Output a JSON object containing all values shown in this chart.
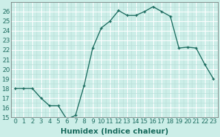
{
  "x": [
    0,
    1,
    2,
    3,
    4,
    5,
    6,
    7,
    8,
    9,
    10,
    11,
    12,
    13,
    14,
    15,
    16,
    17,
    18,
    19,
    20,
    21,
    22,
    23
  ],
  "y": [
    18,
    18,
    18,
    17,
    16.2,
    16.2,
    14.8,
    15.2,
    18.3,
    22.2,
    24.3,
    25.0,
    26.1,
    25.6,
    25.6,
    26.0,
    26.5,
    26.0,
    25.5,
    22.2,
    22.3,
    22.2,
    20.5,
    19.0
  ],
  "line_color": "#1a6b5e",
  "marker": "+",
  "marker_size": 3.5,
  "marker_color": "#1a6b5e",
  "bg_color": "#cceee8",
  "grid_minor_color": "#b8ddd8",
  "grid_major_color": "#ffffff",
  "xlabel": "Humidex (Indice chaleur)",
  "xlabel_fontsize": 8,
  "ylim": [
    15,
    27
  ],
  "yticks": [
    15,
    16,
    17,
    18,
    19,
    20,
    21,
    22,
    23,
    24,
    25,
    26
  ],
  "xticks": [
    0,
    1,
    2,
    3,
    4,
    5,
    6,
    7,
    8,
    9,
    10,
    11,
    12,
    13,
    14,
    15,
    16,
    17,
    18,
    19,
    20,
    21,
    22,
    23
  ],
  "tick_fontsize": 6.5,
  "line_width": 1.0,
  "figsize": [
    3.2,
    2.0
  ],
  "dpi": 100
}
